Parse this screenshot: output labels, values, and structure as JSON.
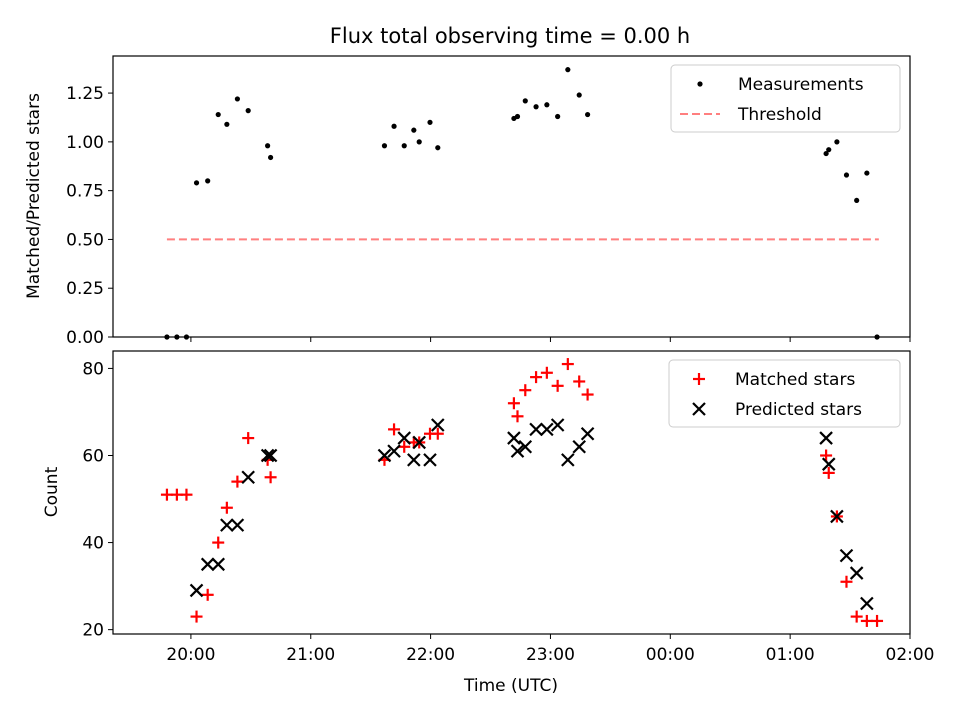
{
  "title": "Flux total observing time = 0.00 h",
  "top_panel": {
    "ylabel": "Matched/Predicted stars",
    "ytick_labels": [
      "0.00",
      "0.25",
      "0.50",
      "0.75",
      "1.00",
      "1.25"
    ],
    "legend": {
      "measurements": "Measurements",
      "threshold": "Threshold"
    }
  },
  "bottom_panel": {
    "ylabel": "Count",
    "xlabel": "Time (UTC)",
    "ytick_labels": [
      "20",
      "40",
      "60",
      "80"
    ],
    "xtick_labels": [
      "20:00",
      "21:00",
      "22:00",
      "23:00",
      "00:00",
      "01:00",
      "02:00"
    ],
    "legend": {
      "matched": "Matched stars",
      "predicted": "Predicted stars"
    }
  },
  "colors": {
    "measurements": "#000000",
    "threshold": "#ff7f7f",
    "matched": "#ff0000",
    "predicted": "#000000"
  },
  "chart_data": [
    {
      "type": "scatter",
      "title": "Flux total observing time = 0.00 h",
      "xlabel": "",
      "ylabel": "Matched/Predicted stars",
      "x_unit": "hours since 00:00 UTC of the first night (values > 24 are after midnight)",
      "xlim": [
        19.35,
        26.0
      ],
      "ylim": [
        0.0,
        1.44
      ],
      "x_ticks": [
        20,
        21,
        22,
        23,
        24,
        25,
        26
      ],
      "y_ticks": [
        0.0,
        0.25,
        0.5,
        0.75,
        1.0,
        1.25
      ],
      "legend_position": "top-right",
      "series": [
        {
          "name": "Measurements",
          "kind": "points",
          "color": "#000000",
          "x": [
            19.8,
            19.883,
            19.963,
            20.047,
            20.14,
            20.228,
            20.3,
            20.388,
            20.478,
            20.64,
            20.665,
            21.615,
            21.695,
            21.78,
            21.86,
            21.905,
            21.995,
            22.06,
            22.695,
            22.725,
            22.79,
            22.88,
            22.97,
            23.06,
            23.145,
            23.24,
            23.31,
            25.3,
            25.322,
            25.39,
            25.47,
            25.555,
            25.64,
            25.725
          ],
          "y": [
            0.0,
            0.0,
            0.0,
            0.79,
            0.8,
            1.14,
            1.09,
            1.22,
            1.16,
            0.98,
            0.92,
            0.98,
            1.08,
            0.98,
            1.06,
            1.0,
            1.1,
            0.97,
            1.12,
            1.13,
            1.21,
            1.18,
            1.19,
            1.13,
            1.37,
            1.24,
            1.14,
            0.94,
            0.96,
            1.0,
            0.83,
            0.7,
            0.84,
            0.0
          ]
        },
        {
          "name": "Threshold",
          "kind": "dashed-line",
          "color": "#ff7f7f",
          "x": [
            19.8,
            25.74
          ],
          "y": [
            0.5,
            0.5
          ]
        }
      ]
    },
    {
      "type": "scatter",
      "title": "",
      "xlabel": "Time (UTC)",
      "ylabel": "Count",
      "x_unit": "hours since 00:00 UTC of the first night (values > 24 are after midnight)",
      "xlim": [
        19.35,
        26.0
      ],
      "ylim": [
        19,
        84
      ],
      "x_ticks": [
        20,
        21,
        22,
        23,
        24,
        25,
        26
      ],
      "y_ticks": [
        20,
        40,
        60,
        80
      ],
      "legend_position": "top-right",
      "series": [
        {
          "name": "Matched stars",
          "marker": "plus",
          "color": "#ff0000",
          "x": [
            19.8,
            19.883,
            19.963,
            20.047,
            20.14,
            20.228,
            20.3,
            20.388,
            20.478,
            20.64,
            20.665,
            21.615,
            21.695,
            21.78,
            21.86,
            21.905,
            21.995,
            22.06,
            22.695,
            22.725,
            22.79,
            22.88,
            22.97,
            23.06,
            23.145,
            23.24,
            23.31,
            25.3,
            25.322,
            25.39,
            25.47,
            25.555,
            25.64,
            25.725
          ],
          "y": [
            51,
            51,
            51,
            23,
            28,
            40,
            48,
            54,
            64,
            59,
            55,
            59,
            66,
            62,
            63,
            63,
            65,
            65,
            72,
            69,
            75,
            78,
            79,
            76,
            81,
            77,
            74,
            60,
            56,
            46,
            31,
            23,
            22,
            22
          ]
        },
        {
          "name": "Predicted stars",
          "marker": "x",
          "color": "#000000",
          "x": [
            20.047,
            20.14,
            20.228,
            20.3,
            20.388,
            20.478,
            20.64,
            20.665,
            21.615,
            21.695,
            21.78,
            21.86,
            21.905,
            21.995,
            22.06,
            22.695,
            22.725,
            22.79,
            22.88,
            22.97,
            23.06,
            23.145,
            23.24,
            23.31,
            25.3,
            25.322,
            25.39,
            25.47,
            25.555,
            25.64
          ],
          "y": [
            29,
            35,
            35,
            44,
            44,
            55,
            60,
            60,
            60,
            61,
            64,
            59,
            63,
            59,
            67,
            64,
            61,
            62,
            66,
            66,
            67,
            59,
            62,
            65,
            64,
            58,
            46,
            37,
            33,
            26
          ]
        }
      ]
    }
  ]
}
